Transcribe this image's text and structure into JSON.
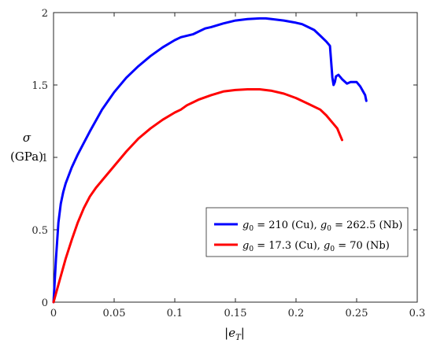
{
  "chart_data": {
    "type": "line",
    "title": "",
    "xlabel": "|e_T|",
    "ylabel_symbol": "σ",
    "ylabel_unit": "(GPa)",
    "xlim": [
      0,
      0.3
    ],
    "ylim": [
      0,
      2
    ],
    "x_ticks": [
      0,
      0.05,
      0.1,
      0.15,
      0.2,
      0.25,
      0.3
    ],
    "x_tick_labels": [
      "0",
      "0.05",
      "0.1",
      "0.15",
      "0.2",
      "0.25",
      "0.3"
    ],
    "y_ticks": [
      0,
      0.5,
      1,
      1.5,
      2
    ],
    "y_tick_labels": [
      "0",
      "0.5",
      "1",
      "1.5",
      "2"
    ],
    "grid": false,
    "legend_position": "lower-right",
    "series": [
      {
        "name": "g₀ = 210 (Cu), g₀ = 262.5 (Nb)",
        "legend": [
          {
            "t": "g",
            "it": true
          },
          {
            "t": "0",
            "sub": true
          },
          {
            "t": " = 210 (Cu), "
          },
          {
            "t": "g",
            "it": true
          },
          {
            "t": "0",
            "sub": true
          },
          {
            "t": " = 262.5 (Nb)"
          }
        ],
        "color": "#0000ff",
        "x": [
          0,
          0.002,
          0.004,
          0.006,
          0.008,
          0.01,
          0.015,
          0.02,
          0.025,
          0.03,
          0.04,
          0.05,
          0.06,
          0.07,
          0.08,
          0.09,
          0.1,
          0.105,
          0.11,
          0.115,
          0.12,
          0.125,
          0.13,
          0.14,
          0.15,
          0.16,
          0.17,
          0.175,
          0.18,
          0.19,
          0.2,
          0.205,
          0.21,
          0.215,
          0.22,
          0.225,
          0.228,
          0.23,
          0.231,
          0.232,
          0.233,
          0.235,
          0.238,
          0.242,
          0.245,
          0.248,
          0.25,
          0.253,
          0.255,
          0.257,
          0.258
        ],
        "y": [
          0,
          0.3,
          0.55,
          0.68,
          0.76,
          0.82,
          0.93,
          1.02,
          1.1,
          1.18,
          1.33,
          1.45,
          1.55,
          1.63,
          1.7,
          1.76,
          1.81,
          1.83,
          1.84,
          1.85,
          1.87,
          1.89,
          1.9,
          1.925,
          1.945,
          1.955,
          1.96,
          1.96,
          1.955,
          1.945,
          1.93,
          1.92,
          1.9,
          1.88,
          1.84,
          1.8,
          1.77,
          1.55,
          1.5,
          1.52,
          1.56,
          1.57,
          1.54,
          1.51,
          1.52,
          1.52,
          1.52,
          1.49,
          1.46,
          1.43,
          1.39
        ]
      },
      {
        "name": "g₀ = 17.3 (Cu), g₀ = 70 (Nb)",
        "legend": [
          {
            "t": "g",
            "it": true
          },
          {
            "t": "0",
            "sub": true
          },
          {
            "t": " = 17.3 (Cu), "
          },
          {
            "t": "g",
            "it": true
          },
          {
            "t": "0",
            "sub": true
          },
          {
            "t": " = 70 (Nb)"
          }
        ],
        "color": "#ff0000",
        "x": [
          0,
          0.005,
          0.01,
          0.015,
          0.02,
          0.025,
          0.03,
          0.035,
          0.04,
          0.05,
          0.06,
          0.07,
          0.08,
          0.09,
          0.1,
          0.105,
          0.11,
          0.115,
          0.12,
          0.13,
          0.14,
          0.15,
          0.16,
          0.17,
          0.18,
          0.19,
          0.2,
          0.21,
          0.22,
          0.225,
          0.23,
          0.234,
          0.236,
          0.238
        ],
        "y": [
          0,
          0.15,
          0.3,
          0.43,
          0.55,
          0.65,
          0.73,
          0.79,
          0.84,
          0.94,
          1.04,
          1.13,
          1.2,
          1.26,
          1.31,
          1.33,
          1.36,
          1.38,
          1.4,
          1.43,
          1.455,
          1.465,
          1.47,
          1.47,
          1.46,
          1.44,
          1.41,
          1.37,
          1.33,
          1.29,
          1.24,
          1.2,
          1.16,
          1.12
        ]
      }
    ]
  }
}
